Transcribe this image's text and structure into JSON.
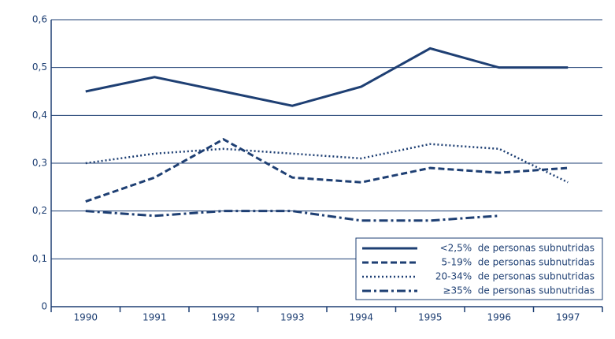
{
  "chart_data": {
    "type": "line",
    "categories": [
      "1990",
      "1991",
      "1992",
      "1993",
      "1994",
      "1995",
      "1996",
      "1997"
    ],
    "series": [
      {
        "name": "<2,5%  de personas subnutridas",
        "color": "#1e3f73",
        "linestyle": "solid",
        "values": [
          0.45,
          0.48,
          0.45,
          0.42,
          0.46,
          0.54,
          0.5,
          0.5
        ]
      },
      {
        "name": "5-19%  de personas subnutridas",
        "color": "#1e3f73",
        "linestyle": "dashed",
        "values": [
          0.22,
          0.27,
          0.35,
          0.27,
          0.26,
          0.29,
          0.28,
          0.29
        ]
      },
      {
        "name": "20-34%  de personas subnutridas",
        "color": "#1e3f73",
        "linestyle": "dotted",
        "values": [
          0.3,
          0.32,
          0.33,
          0.32,
          0.31,
          0.34,
          0.33,
          0.26
        ]
      },
      {
        "name": "≥35%  de personas subnutridas",
        "color": "#1e3f73",
        "linestyle": "dashdot",
        "values": [
          0.2,
          0.19,
          0.2,
          0.2,
          0.18,
          0.18,
          0.19,
          null
        ]
      }
    ],
    "ylim": [
      0,
      0.6
    ],
    "yticks": [
      0,
      {
        "value": 0.1,
        "label": "0,1"
      },
      {
        "value": 0.2,
        "label": "0,2"
      },
      {
        "value": 0.3,
        "label": "0,3"
      },
      {
        "value": 0.4,
        "label": "0,4"
      },
      {
        "value": 0.5,
        "label": "0,5"
      },
      {
        "value": 0.6,
        "label": "0,6"
      }
    ],
    "grid": true,
    "legend": "lower right"
  }
}
